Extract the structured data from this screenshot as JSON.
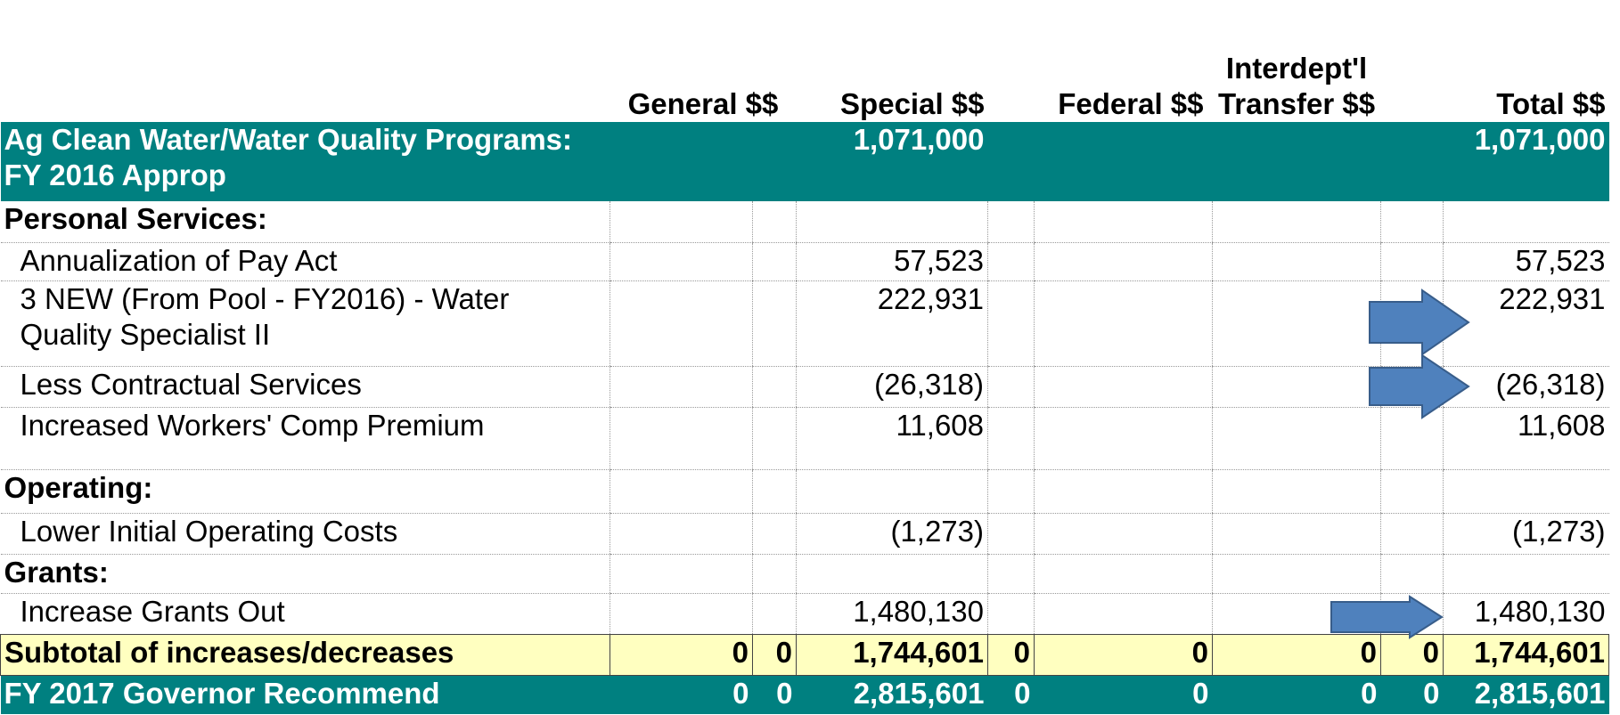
{
  "table": {
    "header": {
      "B": "General $$",
      "D": "Special $$",
      "F": "Federal $$",
      "G": "Interdept'l Transfer $$",
      "I": "Total $$"
    },
    "rows": [
      {
        "kind": "teal",
        "A": "Ag Clean Water/Water Quality Programs: FY 2016 Approp",
        "D": "1,071,000",
        "I": "1,071,000"
      },
      {
        "kind": "section",
        "A": "Personal Services:"
      },
      {
        "kind": "item",
        "A": "Annualization of Pay Act",
        "D": "57,523",
        "I": "57,523"
      },
      {
        "kind": "item",
        "A": "3 NEW (From Pool - FY2016) - Water Quality Specialist II",
        "D": "222,931",
        "I": "222,931"
      },
      {
        "kind": "item",
        "A": "Less Contractual Services",
        "D": "(26,318)",
        "I": "(26,318)"
      },
      {
        "kind": "item",
        "A": "Increased Workers' Comp Premium",
        "D": "11,608",
        "I": "11,608"
      },
      {
        "kind": "section",
        "A": "Operating:"
      },
      {
        "kind": "item",
        "A": "Lower Initial Operating Costs",
        "D": "(1,273)",
        "I": "(1,273)"
      },
      {
        "kind": "section",
        "A": "Grants:"
      },
      {
        "kind": "item",
        "A": "Increase Grants Out",
        "D": "1,480,130",
        "I": "1,480,130"
      },
      {
        "kind": "subtotal",
        "A": "Subtotal of increases/decreases",
        "B": "0",
        "C": "0",
        "D": "1,744,601",
        "E": "0",
        "F": "0",
        "G": "0",
        "H": "0",
        "I": "1,744,601"
      },
      {
        "kind": "teal",
        "A": "FY 2017 Governor Recommend",
        "B": "0",
        "C": "0",
        "D": "2,815,601",
        "E": "0",
        "F": "0",
        "G": "0",
        "H": "0",
        "I": "2,815,601"
      }
    ]
  }
}
